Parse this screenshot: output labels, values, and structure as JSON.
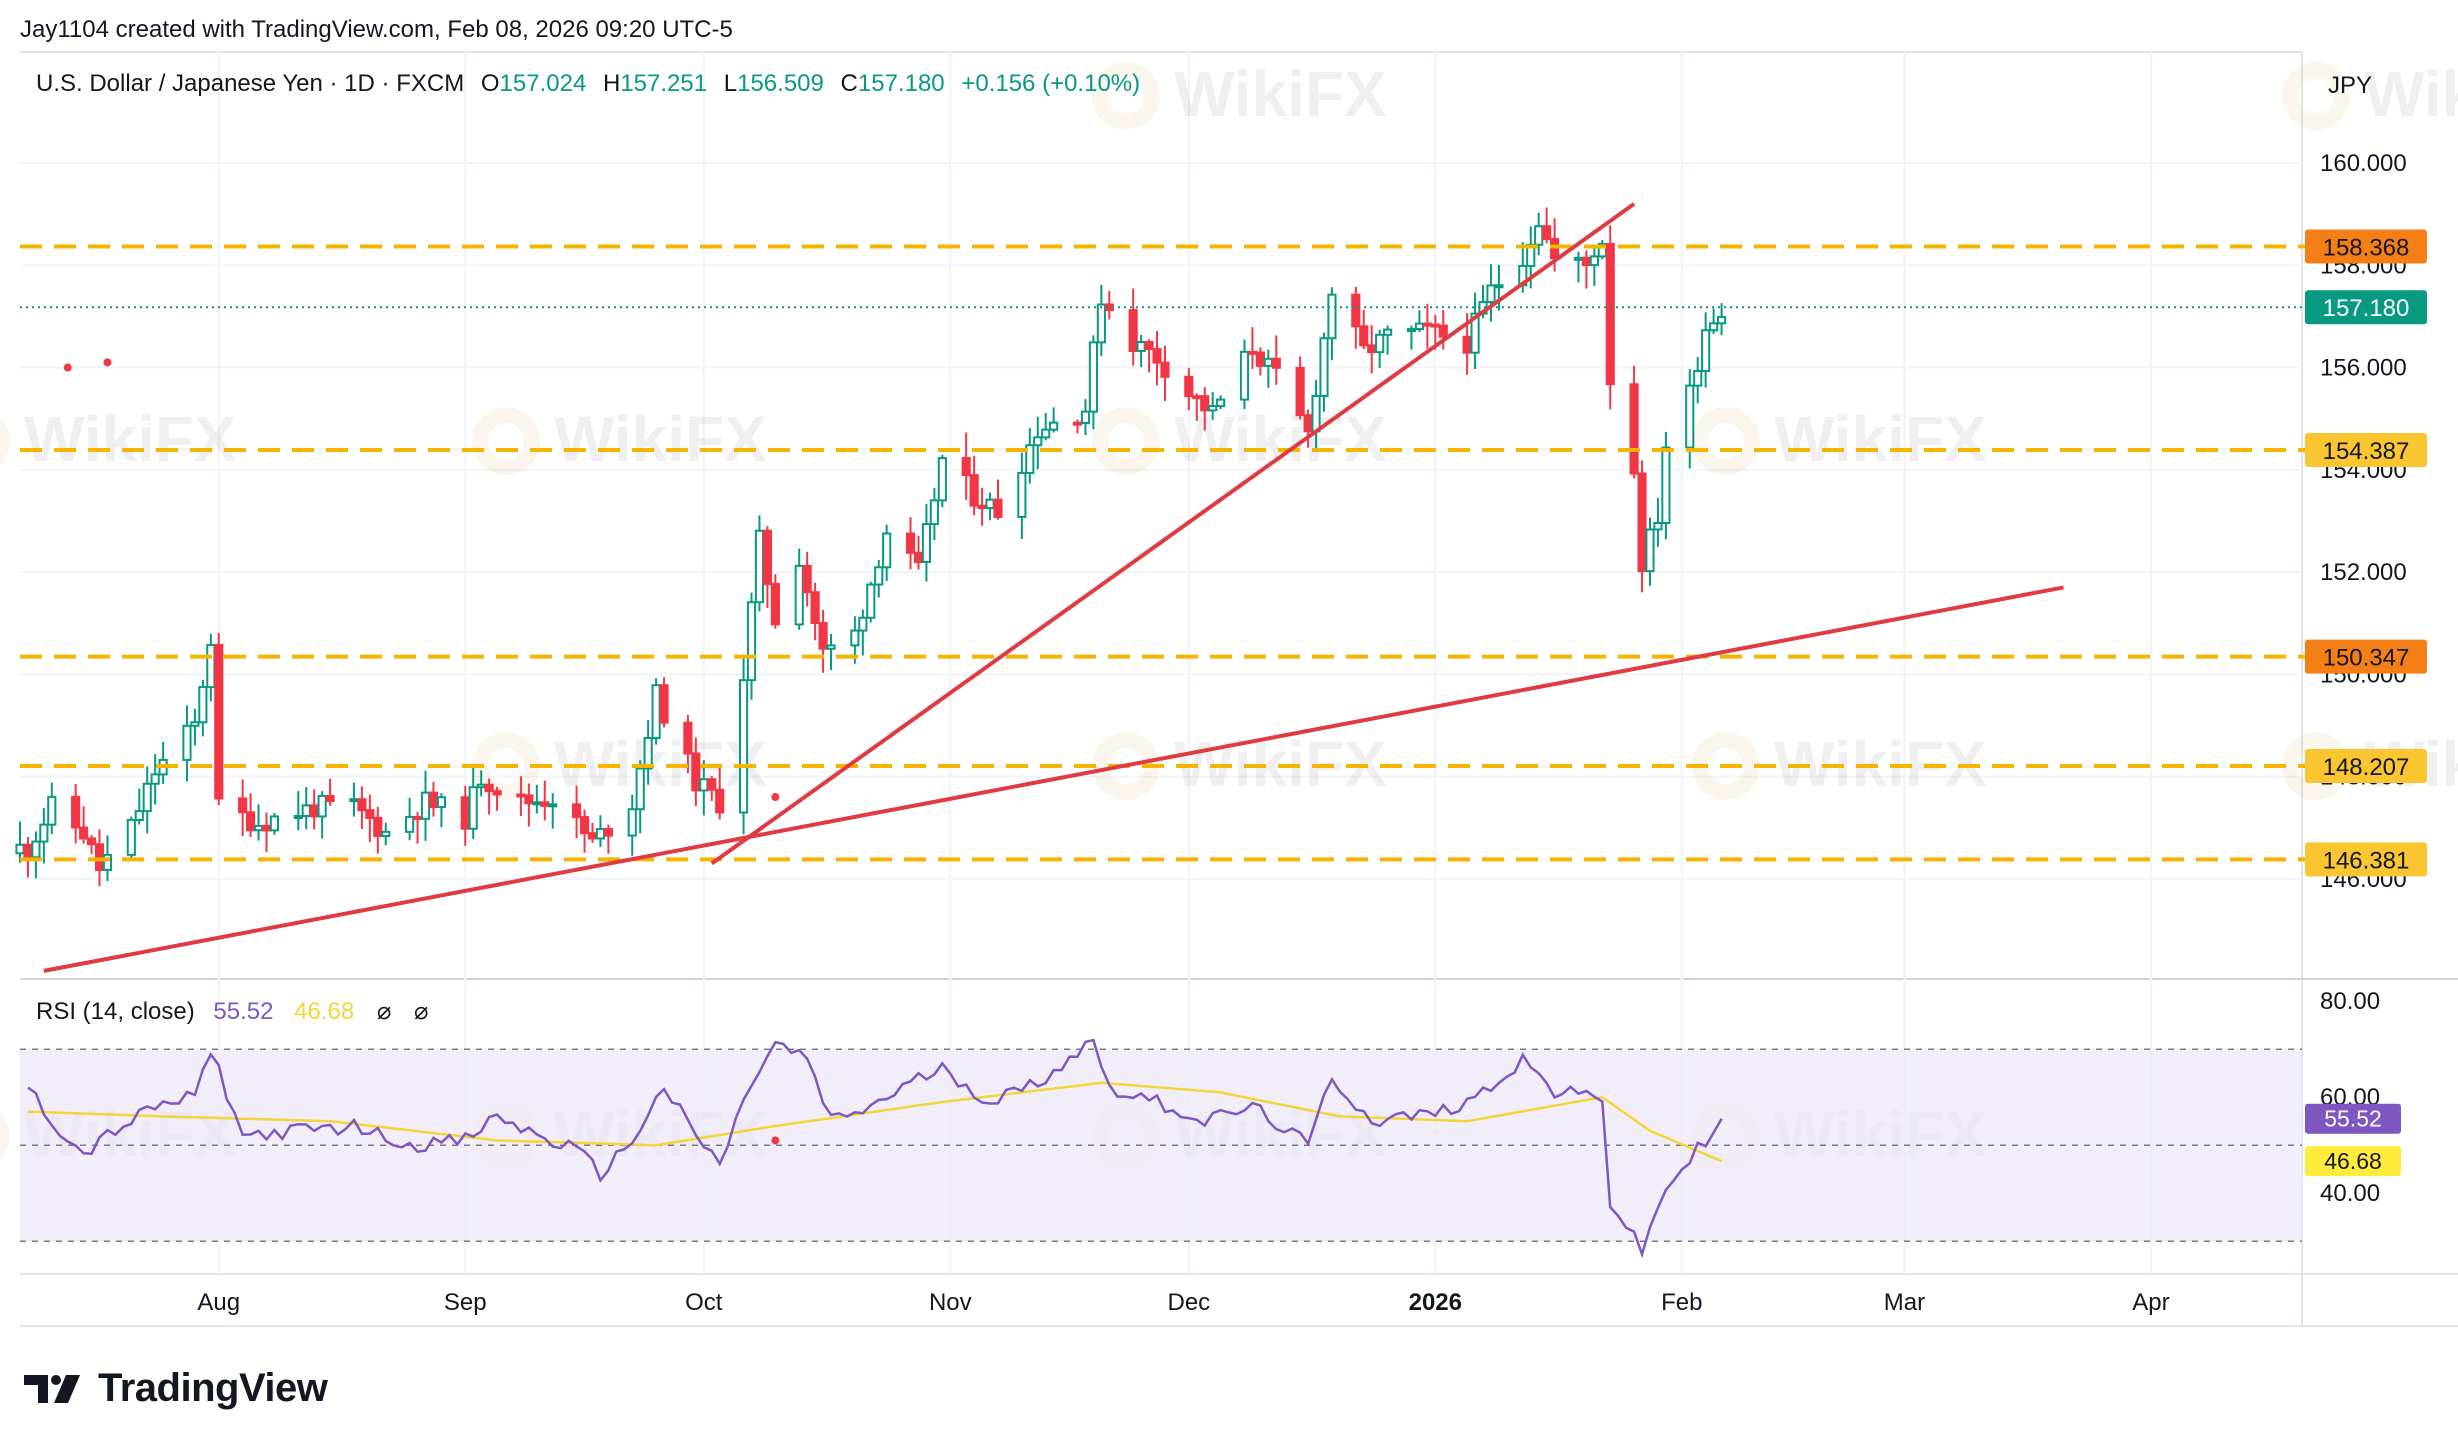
{
  "header": {
    "credit": "Jay1104 created with TradingView.com, Feb 08, 2026 09:20 UTC-5",
    "symbol": "U.S. Dollar / Japanese Yen · 1D · FXCM",
    "ohlc": {
      "o_label": "O",
      "o": "157.024",
      "h_label": "H",
      "h": "157.251",
      "l_label": "L",
      "l": "156.509",
      "c_label": "C",
      "c": "157.180",
      "change": "+0.156 (+0.10%)"
    },
    "unit": "JPY"
  },
  "rsi_legend": {
    "label": "RSI (14, close)",
    "rsi_value": "55.52",
    "ma_value": "46.68",
    "icon_a": "⌀",
    "icon_b": "⌀"
  },
  "brand": {
    "name": "TradingView",
    "logo_icon": "tradingview-logo-icon"
  },
  "watermark": {
    "text": "WikiFX",
    "icon": "wikifx-logo-icon"
  },
  "colors": {
    "up": "#089981",
    "down": "#f23645",
    "trend": "#e03a43",
    "level_line": "#f5b400",
    "label_orange": "#f57f17",
    "label_yellow": "#f9c531",
    "price_label": "#089981",
    "rsi": "#7e57c2",
    "rsi_ma": "#f0d63a",
    "rsi_band": "#ede7f6"
  },
  "chart_data": [
    {
      "type": "candlestick",
      "title": "U.S. Dollar / Japanese Yen · 1D · FXCM",
      "y_axis": {
        "ticks": [
          146.0,
          148.0,
          150.0,
          152.0,
          154.0,
          156.0,
          158.0,
          160.0
        ],
        "tick_labels": [
          "146.000",
          "148.000",
          "150.000",
          "152.000",
          "154.000",
          "156.000",
          "158.000",
          "160.000"
        ],
        "range": [
          144.1,
          160.9
        ],
        "side": "right"
      },
      "x_axis": {
        "labels": [
          {
            "label": "Aug",
            "date": "2025-08-01",
            "bold": false
          },
          {
            "label": "Sep",
            "date": "2025-09-01",
            "bold": false
          },
          {
            "label": "Oct",
            "date": "2025-10-01",
            "bold": false
          },
          {
            "label": "Nov",
            "date": "2025-11-01",
            "bold": false
          },
          {
            "label": "Dec",
            "date": "2025-12-01",
            "bold": false
          },
          {
            "label": "2026",
            "date": "2026-01-01",
            "bold": true
          },
          {
            "label": "Feb",
            "date": "2026-02-01",
            "bold": false
          },
          {
            "label": "Mar",
            "date": "2026-03-01",
            "bold": false
          },
          {
            "label": "Apr",
            "date": "2026-04-01",
            "bold": false
          }
        ],
        "range": [
          "2025-07-07",
          "2026-04-20"
        ]
      },
      "anchors": [
        {
          "date": "2025-07-08",
          "close": 146.6
        },
        {
          "date": "2025-07-11",
          "close": 147.4
        },
        {
          "date": "2025-07-15",
          "close": 146.9
        },
        {
          "date": "2025-07-17",
          "close": 146.2
        },
        {
          "date": "2025-07-21",
          "close": 147.0
        },
        {
          "date": "2025-07-24",
          "close": 148.1
        },
        {
          "date": "2025-07-29",
          "close": 149.0
        },
        {
          "date": "2025-07-31",
          "close": 150.7
        },
        {
          "date": "2025-08-01",
          "close": 147.4
        },
        {
          "date": "2025-08-06",
          "close": 147.1
        },
        {
          "date": "2025-08-13",
          "close": 147.4
        },
        {
          "date": "2025-08-18",
          "close": 147.4
        },
        {
          "date": "2025-08-22",
          "close": 146.9
        },
        {
          "date": "2025-08-27",
          "close": 147.5
        },
        {
          "date": "2025-09-01",
          "close": 147.2
        },
        {
          "date": "2025-09-03",
          "close": 148.0
        },
        {
          "date": "2025-09-08",
          "close": 147.5
        },
        {
          "date": "2025-09-12",
          "close": 147.6
        },
        {
          "date": "2025-09-17",
          "close": 146.7
        },
        {
          "date": "2025-09-22",
          "close": 147.5
        },
        {
          "date": "2025-09-25",
          "close": 149.6
        },
        {
          "date": "2025-09-30",
          "close": 147.9
        },
        {
          "date": "2025-10-03",
          "close": 147.5
        },
        {
          "date": "2025-10-06",
          "close": 150.0
        },
        {
          "date": "2025-10-08",
          "close": 152.6
        },
        {
          "date": "2025-10-10",
          "close": 151.1
        },
        {
          "date": "2025-10-13",
          "close": 152.3
        },
        {
          "date": "2025-10-16",
          "close": 150.4
        },
        {
          "date": "2025-10-20",
          "close": 150.8
        },
        {
          "date": "2025-10-24",
          "close": 152.8
        },
        {
          "date": "2025-10-28",
          "close": 152.0
        },
        {
          "date": "2025-10-31",
          "close": 154.2
        },
        {
          "date": "2025-11-04",
          "close": 153.5
        },
        {
          "date": "2025-11-07",
          "close": 153.2
        },
        {
          "date": "2025-11-12",
          "close": 154.8
        },
        {
          "date": "2025-11-18",
          "close": 155.2
        },
        {
          "date": "2025-11-20",
          "close": 157.4
        },
        {
          "date": "2025-11-24",
          "close": 156.5
        },
        {
          "date": "2025-11-27",
          "close": 156.2
        },
        {
          "date": "2025-12-01",
          "close": 155.5
        },
        {
          "date": "2025-12-04",
          "close": 155.1
        },
        {
          "date": "2025-12-09",
          "close": 156.4
        },
        {
          "date": "2025-12-12",
          "close": 155.8
        },
        {
          "date": "2025-12-16",
          "close": 154.7
        },
        {
          "date": "2025-12-19",
          "close": 157.5
        },
        {
          "date": "2025-12-23",
          "close": 156.3
        },
        {
          "date": "2025-12-26",
          "close": 156.6
        },
        {
          "date": "2025-12-31",
          "close": 156.7
        },
        {
          "date": "2026-01-05",
          "close": 156.5
        },
        {
          "date": "2026-01-08",
          "close": 157.5
        },
        {
          "date": "2026-01-12",
          "close": 158.2
        },
        {
          "date": "2026-01-14",
          "close": 158.9
        },
        {
          "date": "2026-01-16",
          "close": 158.1
        },
        {
          "date": "2026-01-20",
          "close": 158.0
        },
        {
          "date": "2026-01-21",
          "close": 158.3
        },
        {
          "date": "2026-01-22",
          "close": 158.5
        },
        {
          "date": "2026-01-23",
          "close": 155.8
        },
        {
          "date": "2026-01-26",
          "close": 154.0
        },
        {
          "date": "2026-01-27",
          "close": 152.2
        },
        {
          "date": "2026-01-29",
          "close": 153.1
        },
        {
          "date": "2026-01-30",
          "close": 154.5
        },
        {
          "date": "2026-02-02",
          "close": 155.5
        },
        {
          "date": "2026-02-04",
          "close": 156.8
        },
        {
          "date": "2026-02-06",
          "close": 157.18
        }
      ],
      "levels": [
        {
          "value": 158.368,
          "label": "158.368",
          "style": "orange"
        },
        {
          "value": 154.387,
          "label": "154.387",
          "style": "yellow"
        },
        {
          "value": 150.347,
          "label": "150.347",
          "style": "orange"
        },
        {
          "value": 148.207,
          "label": "148.207",
          "style": "yellow"
        },
        {
          "value": 146.381,
          "label": "146.381",
          "style": "yellow"
        }
      ],
      "last_price": {
        "value": 157.18,
        "label": "157.180"
      },
      "trendlines": [
        {
          "from": {
            "date": "2025-10-02",
            "value": 146.3
          },
          "to": {
            "date": "2026-01-26",
            "value": 159.2
          }
        },
        {
          "from": {
            "date": "2025-07-10",
            "value": 144.2
          },
          "to": {
            "date": "2026-03-21",
            "value": 151.7
          }
        }
      ],
      "markers": [
        {
          "date": "2025-07-13",
          "value": 156.0
        },
        {
          "date": "2025-07-18",
          "value": 156.1
        },
        {
          "date": "2025-10-10",
          "value": 147.6
        }
      ]
    },
    {
      "type": "line",
      "title": "RSI (14, close)",
      "y_axis": {
        "ticks": [
          40.0,
          60.0,
          80.0
        ],
        "tick_labels": [
          "40.00",
          "60.00",
          "80.00"
        ],
        "range": [
          24,
          84
        ],
        "side": "right"
      },
      "bands": {
        "upper": 70,
        "middle": 50,
        "lower": 30
      },
      "series": [
        {
          "name": "RSI",
          "points": [
            {
              "date": "2025-07-08",
              "value": 62
            },
            {
              "date": "2025-07-11",
              "value": 55
            },
            {
              "date": "2025-07-15",
              "value": 48
            },
            {
              "date": "2025-07-18",
              "value": 52
            },
            {
              "date": "2025-07-24",
              "value": 58
            },
            {
              "date": "2025-07-29",
              "value": 60
            },
            {
              "date": "2025-07-31",
              "value": 70
            },
            {
              "date": "2025-08-04",
              "value": 52
            },
            {
              "date": "2025-08-11",
              "value": 53
            },
            {
              "date": "2025-08-18",
              "value": 54
            },
            {
              "date": "2025-08-25",
              "value": 50
            },
            {
              "date": "2025-09-01",
              "value": 51
            },
            {
              "date": "2025-09-05",
              "value": 56
            },
            {
              "date": "2025-09-10",
              "value": 52
            },
            {
              "date": "2025-09-15",
              "value": 49
            },
            {
              "date": "2025-09-18",
              "value": 44
            },
            {
              "date": "2025-09-22",
              "value": 51
            },
            {
              "date": "2025-09-26",
              "value": 62
            },
            {
              "date": "2025-09-30",
              "value": 52
            },
            {
              "date": "2025-10-03",
              "value": 46
            },
            {
              "date": "2025-10-07",
              "value": 63
            },
            {
              "date": "2025-10-10",
              "value": 71
            },
            {
              "date": "2025-10-14",
              "value": 68
            },
            {
              "date": "2025-10-17",
              "value": 55
            },
            {
              "date": "2025-10-22",
              "value": 58
            },
            {
              "date": "2025-10-27",
              "value": 63
            },
            {
              "date": "2025-10-31",
              "value": 66
            },
            {
              "date": "2025-11-06",
              "value": 59
            },
            {
              "date": "2025-11-12",
              "value": 63
            },
            {
              "date": "2025-11-19",
              "value": 72
            },
            {
              "date": "2025-11-21",
              "value": 62
            },
            {
              "date": "2025-11-27",
              "value": 59
            },
            {
              "date": "2025-12-03",
              "value": 55
            },
            {
              "date": "2025-12-09",
              "value": 58
            },
            {
              "date": "2025-12-16",
              "value": 50
            },
            {
              "date": "2025-12-19",
              "value": 64
            },
            {
              "date": "2025-12-24",
              "value": 55
            },
            {
              "date": "2026-01-02",
              "value": 57
            },
            {
              "date": "2026-01-07",
              "value": 61
            },
            {
              "date": "2026-01-12",
              "value": 68
            },
            {
              "date": "2026-01-16",
              "value": 61
            },
            {
              "date": "2026-01-22",
              "value": 60
            },
            {
              "date": "2026-01-23",
              "value": 38
            },
            {
              "date": "2026-01-27",
              "value": 28
            },
            {
              "date": "2026-01-30",
              "value": 41
            },
            {
              "date": "2026-02-02",
              "value": 47
            },
            {
              "date": "2026-02-06",
              "value": 55.52
            }
          ]
        },
        {
          "name": "RSI-based MA",
          "points": [
            {
              "date": "2025-07-08",
              "value": 57
            },
            {
              "date": "2025-07-25",
              "value": 56
            },
            {
              "date": "2025-08-15",
              "value": 55
            },
            {
              "date": "2025-09-05",
              "value": 51
            },
            {
              "date": "2025-09-25",
              "value": 50
            },
            {
              "date": "2025-10-10",
              "value": 54
            },
            {
              "date": "2025-10-31",
              "value": 59
            },
            {
              "date": "2025-11-20",
              "value": 63
            },
            {
              "date": "2025-12-05",
              "value": 61
            },
            {
              "date": "2025-12-20",
              "value": 56
            },
            {
              "date": "2026-01-05",
              "value": 55
            },
            {
              "date": "2026-01-22",
              "value": 60
            },
            {
              "date": "2026-01-28",
              "value": 53
            },
            {
              "date": "2026-02-06",
              "value": 46.68
            }
          ]
        }
      ],
      "labels": [
        {
          "value": 55.52,
          "label": "55.52",
          "style": "rsi"
        },
        {
          "value": 46.68,
          "label": "46.68",
          "style": "ma"
        }
      ]
    }
  ]
}
